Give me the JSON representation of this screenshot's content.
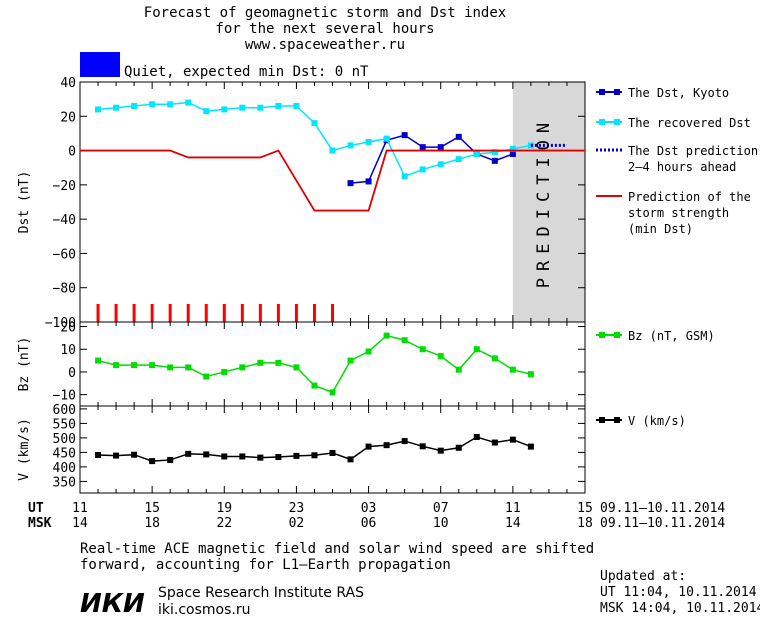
{
  "title_lines": [
    "Forecast of geomagnetic storm and Dst index",
    "for the next several hours",
    "www.spaceweather.ru"
  ],
  "status": {
    "text": "Quiet, expected min Dst: 0 nT",
    "color": "#0000ff"
  },
  "prediction_label": "PREDICTION",
  "time_axis": {
    "ut_label": "UT",
    "msk_label": "MSK",
    "ut_ticks": [
      "11",
      "15",
      "19",
      "23",
      "03",
      "07",
      "11",
      "15"
    ],
    "msk_ticks": [
      "14",
      "18",
      "22",
      "02",
      "06",
      "10",
      "14",
      "18"
    ],
    "ut_range": "09.11–10.11.2014",
    "msk_range": "09.11–10.11.2014"
  },
  "chart_data": [
    {
      "type": "line",
      "ylabel": "Dst (nT)",
      "ylim": [
        -100,
        40
      ],
      "yticks": [
        "40",
        "20",
        "0",
        "−20",
        "−40",
        "−60",
        "−80",
        "−100"
      ],
      "xlim_hours": [
        0,
        28
      ],
      "prediction_start": 24,
      "series": [
        {
          "name": "The Dst, Kyoto",
          "color": "#0000cc",
          "x": [
            15,
            16,
            17,
            18,
            19,
            20,
            21,
            22,
            23,
            24
          ],
          "y": [
            -19,
            -18,
            6,
            9,
            2,
            2,
            8,
            -2,
            -6,
            -2
          ]
        },
        {
          "name": "The recovered Dst",
          "color": "#00e6ff",
          "x": [
            1,
            2,
            3,
            4,
            5,
            6,
            7,
            8,
            9,
            10,
            11,
            12,
            13,
            14,
            15,
            16,
            17,
            18,
            19,
            20,
            21,
            22,
            23,
            24,
            25
          ],
          "y": [
            24,
            25,
            26,
            27,
            27,
            28,
            23,
            24,
            25,
            25,
            26,
            26,
            16,
            0,
            3,
            5,
            7,
            -15,
            -11,
            -8,
            -5,
            -2,
            -1,
            1,
            3
          ]
        },
        {
          "name": "The Dst prediction 2–4 hours ahead",
          "color": "#0000cc",
          "style": "dotted",
          "x": [
            25,
            27
          ],
          "y": [
            3,
            3
          ]
        },
        {
          "name": "Prediction of the storm strength (min Dst)",
          "color": "#dd0000",
          "style": "step",
          "x": [
            0,
            5,
            6,
            10,
            11,
            13,
            16,
            17,
            28
          ],
          "y": [
            0,
            0,
            -4,
            -4,
            0,
            -35,
            -35,
            0,
            0
          ]
        }
      ],
      "legend": [
        {
          "label": "The Dst, Kyoto",
          "color": "#0000cc",
          "style": "marker"
        },
        {
          "label": "The recovered Dst",
          "color": "#00e6ff",
          "style": "marker"
        },
        {
          "label": "The Dst prediction\n2–4 hours ahead",
          "color": "#0000cc",
          "style": "dotted"
        },
        {
          "label": "Prediction of the\nstorm strength\n(min Dst)",
          "color": "#dd0000",
          "style": "line"
        }
      ],
      "storm_markers": {
        "color": "#ff0000",
        "x": [
          1,
          2,
          3,
          4,
          5,
          6,
          7,
          8,
          9,
          10,
          11,
          12,
          13,
          14
        ]
      }
    },
    {
      "type": "line",
      "ylabel": "Bz (nT)",
      "ylim": [
        -15,
        22
      ],
      "yticks": [
        "20",
        "10",
        "0",
        "−10"
      ],
      "series": [
        {
          "name": "Bz (nT, GSM)",
          "color": "#00dd00",
          "x": [
            1,
            2,
            3,
            4,
            5,
            6,
            7,
            8,
            9,
            10,
            11,
            12,
            13,
            14,
            15,
            16,
            17,
            18,
            19,
            20,
            21,
            22,
            23,
            24,
            25
          ],
          "y": [
            5,
            3,
            3,
            3,
            2,
            2,
            -2,
            0,
            2,
            4,
            4,
            2,
            -6,
            -9,
            5,
            9,
            16,
            14,
            10,
            7,
            1,
            10,
            6,
            1,
            -1
          ]
        }
      ],
      "legend": [
        {
          "label": "Bz (nT, GSM)",
          "color": "#00dd00"
        }
      ]
    },
    {
      "type": "line",
      "ylabel": "V (km/s)",
      "ylim": [
        310,
        610
      ],
      "yticks": [
        "600",
        "550",
        "500",
        "450",
        "400",
        "350"
      ],
      "series": [
        {
          "name": "V (km/s)",
          "color": "#000000",
          "x": [
            1,
            2,
            3,
            4,
            5,
            6,
            7,
            8,
            9,
            10,
            11,
            12,
            13,
            14,
            15,
            16,
            17,
            18,
            19,
            20,
            21,
            22,
            23,
            24,
            25
          ],
          "y": [
            441,
            439,
            442,
            420,
            424,
            445,
            443,
            436,
            436,
            432,
            434,
            438,
            440,
            448,
            426,
            470,
            475,
            489,
            471,
            456,
            466,
            503,
            484,
            494,
            470
          ]
        }
      ],
      "legend": [
        {
          "label": "V (km/s)",
          "color": "#000000"
        }
      ]
    }
  ],
  "footer": {
    "note_line1": "Real-time ACE magnetic field and solar wind speed are shifted",
    "note_line2": "forward, accounting for L1–Earth propagation",
    "logo_text": "ИКИ",
    "institute": "Space Research Institute RAS",
    "site": "iki.cosmos.ru",
    "updated_label": "Updated at:",
    "updated_ut": "UT   11:04, 10.11.2014",
    "updated_msk": "MSK 14:04, 10.11.2014"
  }
}
